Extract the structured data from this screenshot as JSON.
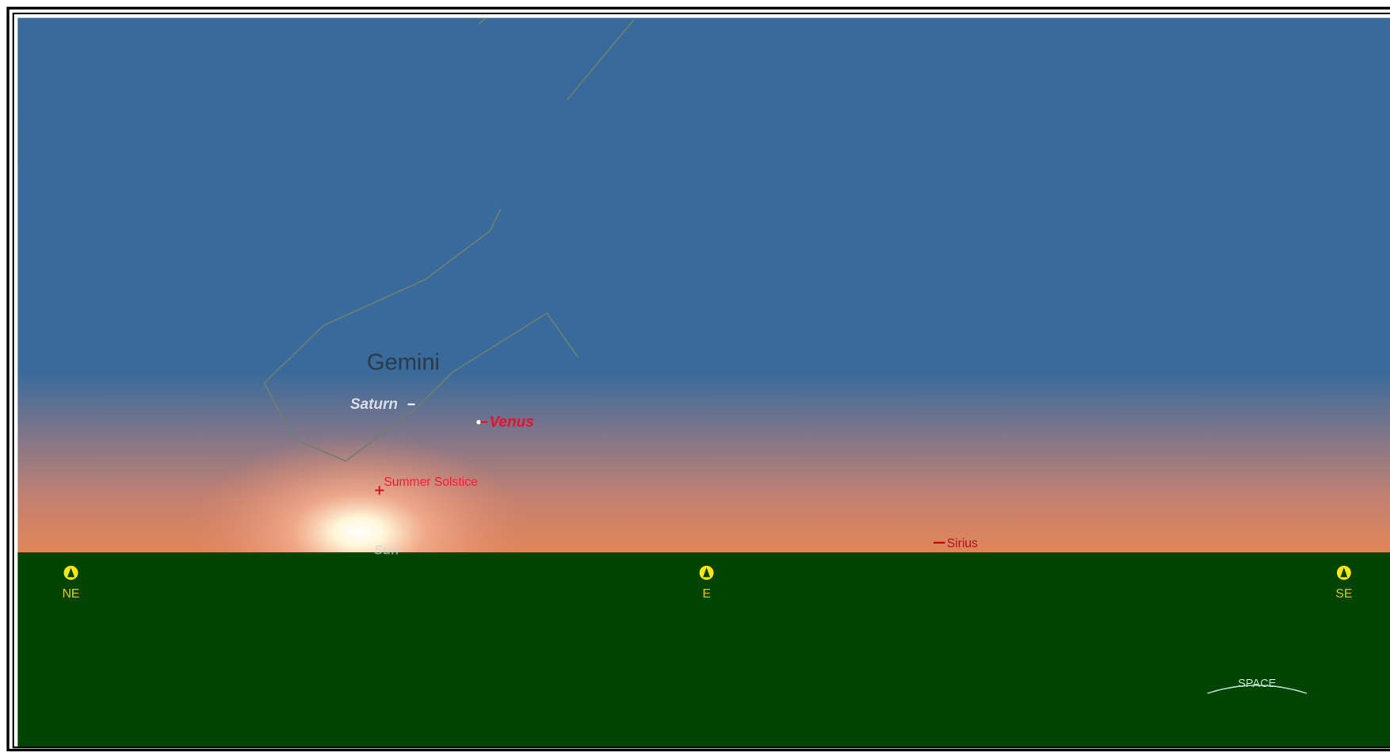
{
  "sky": {
    "constellation": "Gemini",
    "objects": {
      "saturn": "Saturn",
      "venus": "Venus",
      "solstice": "Summer Solstice",
      "sun": "Sun",
      "sirius": "Sirius"
    }
  },
  "compass": [
    "NE",
    "E",
    "SE"
  ],
  "button": "SPACE"
}
